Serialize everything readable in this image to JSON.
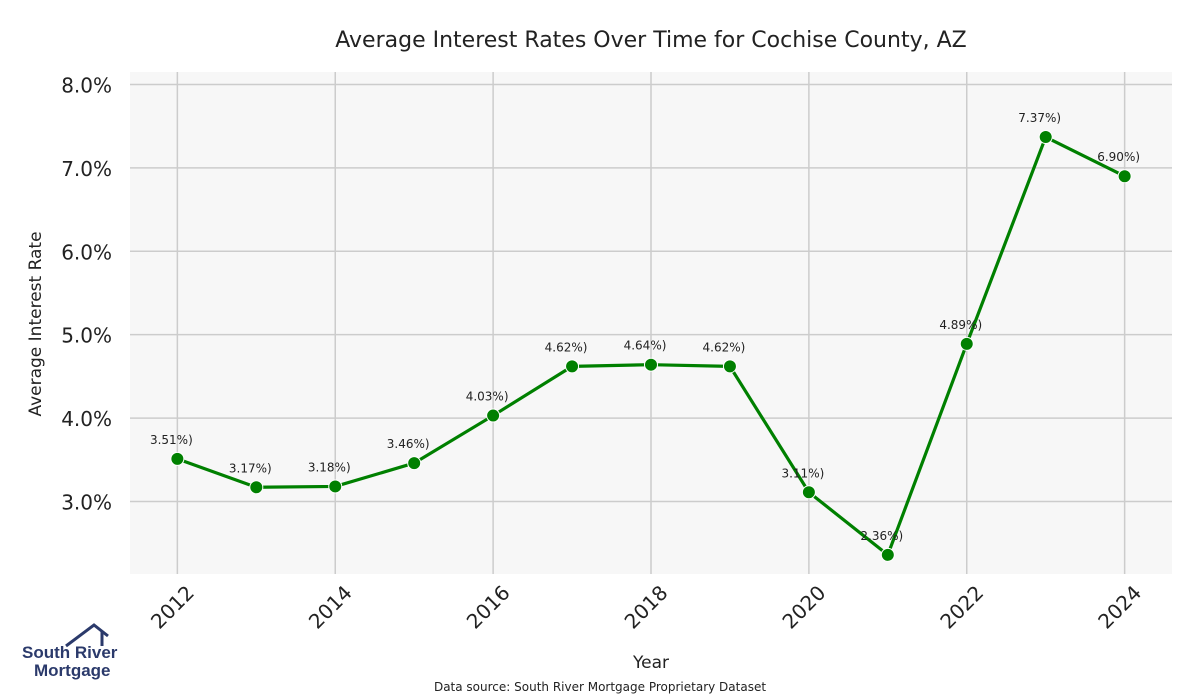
{
  "chart_data": {
    "type": "line",
    "title": "Average Interest Rates Over Time for Cochise County, AZ",
    "xlabel": "Year",
    "ylabel": "Average Interest Rate",
    "x": [
      2012,
      2013,
      2014,
      2015,
      2016,
      2017,
      2018,
      2019,
      2020,
      2021,
      2022,
      2023,
      2024
    ],
    "series": [
      {
        "values": [
          3.51,
          3.17,
          3.18,
          3.46,
          4.03,
          4.62,
          4.64,
          4.62,
          3.11,
          2.36,
          4.89,
          7.37,
          6.9
        ],
        "labels": [
          "3.51%)",
          "3.17%)",
          "3.18%)",
          "3.46%)",
          "4.03%)",
          "4.62%)",
          "4.64%)",
          "4.62%)",
          "3.11%)",
          "2.36%)",
          "4.89%)",
          "7.37%)",
          "6.90%)"
        ],
        "color": "#008000"
      }
    ],
    "xticks": [
      "2012",
      "2014",
      "2016",
      "2018",
      "2020",
      "2022",
      "2024"
    ],
    "yticks": [
      "3.0%",
      "4.0%",
      "5.0%",
      "6.0%",
      "7.0%",
      "8.0%"
    ],
    "ylim": [
      2.13,
      8.15
    ],
    "xlim": [
      2011.4,
      2024.6
    ],
    "grid": true,
    "background": "#f7f7f7",
    "gridColor": "#cccccc"
  },
  "logo": {
    "line1": "South River",
    "line2": "Mortgage",
    "color": "#2b3a6b"
  },
  "source": "Data source: South River Mortgage Proprietary Dataset"
}
